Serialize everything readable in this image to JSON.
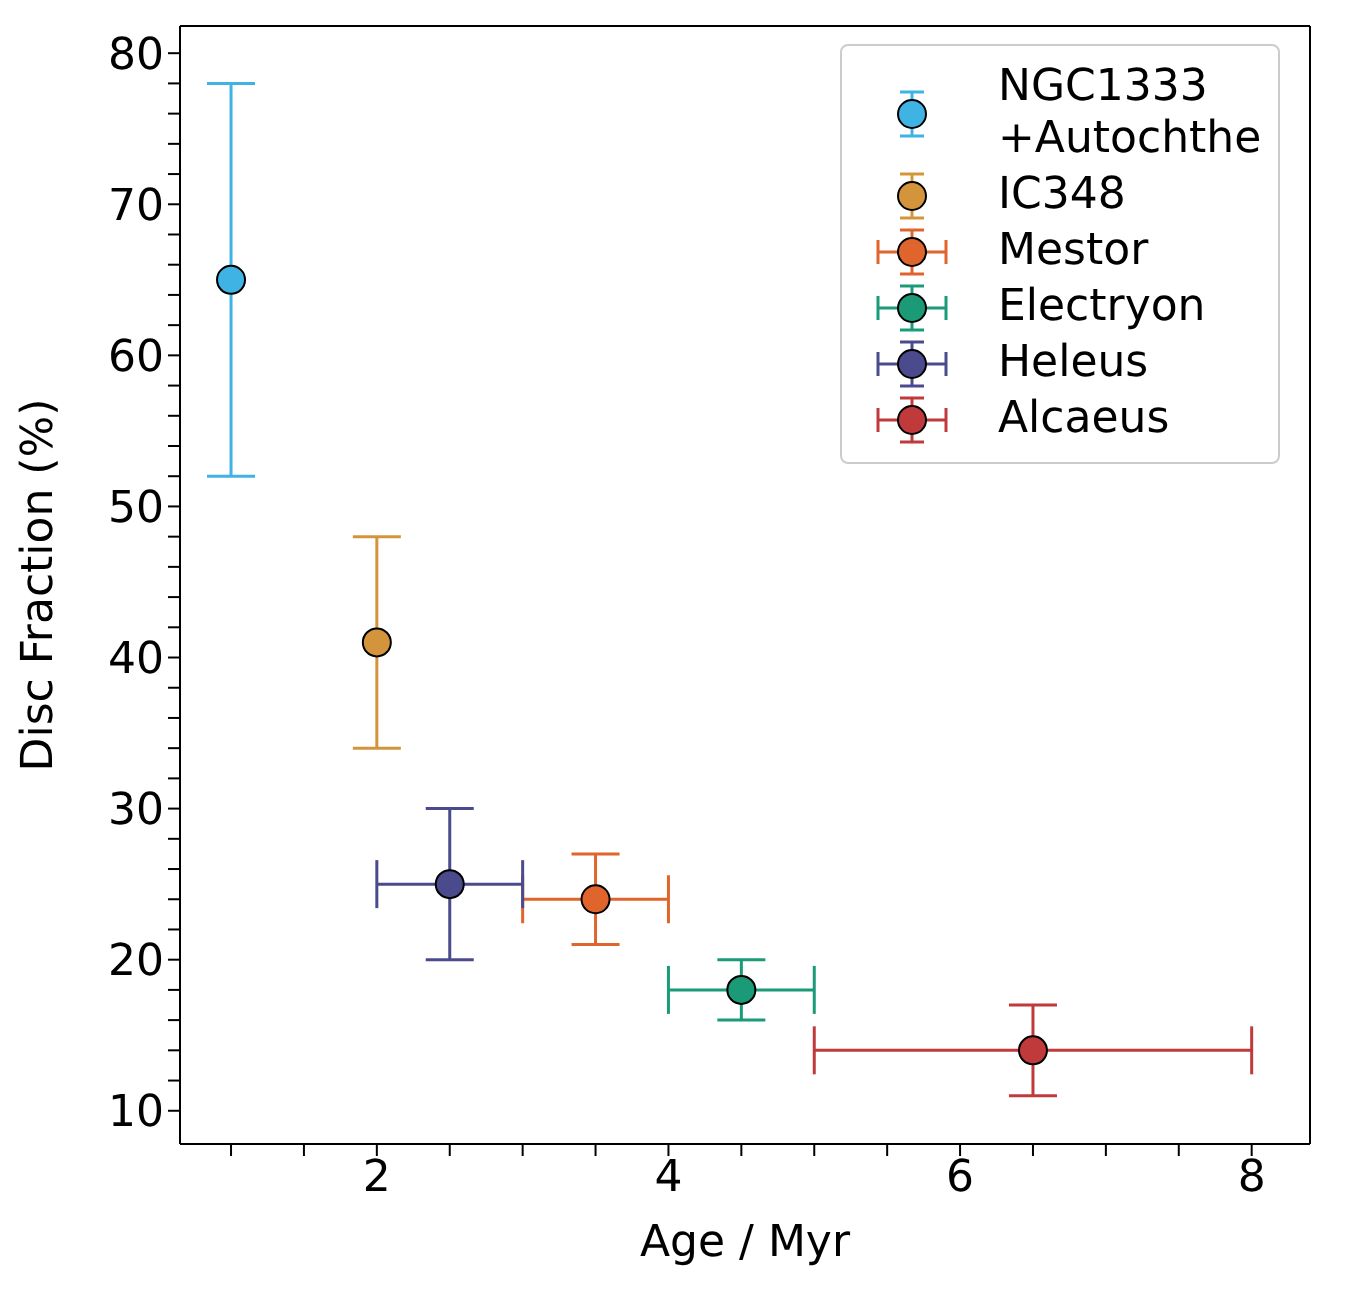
{
  "chart_data": {
    "type": "scatter",
    "xlabel": "Age / Myr",
    "ylabel": "Disc Fraction (%)",
    "xlim": [
      0.65,
      8.4
    ],
    "ylim": [
      7.8,
      81.8
    ],
    "xticks": [
      {
        "value": 1,
        "label": null
      },
      {
        "value": 1.5,
        "label": null
      },
      2,
      {
        "value": 2.5,
        "label": null
      },
      {
        "value": 3,
        "label": null
      },
      {
        "value": 3.5,
        "label": null
      },
      4,
      {
        "value": 4.5,
        "label": null
      },
      {
        "value": 5,
        "label": null
      },
      {
        "value": 5.5,
        "label": null
      },
      6,
      {
        "value": 6.5,
        "label": null
      },
      {
        "value": 7,
        "label": null
      },
      {
        "value": 7.5,
        "label": null
      },
      8
    ],
    "yticks": [
      10,
      {
        "value": 12,
        "label": null
      },
      {
        "value": 14,
        "label": null
      },
      {
        "value": 16,
        "label": null
      },
      {
        "value": 18,
        "label": null
      },
      20,
      {
        "value": 22,
        "label": null
      },
      {
        "value": 24,
        "label": null
      },
      {
        "value": 26,
        "label": null
      },
      {
        "value": 28,
        "label": null
      },
      30,
      {
        "value": 32,
        "label": null
      },
      {
        "value": 34,
        "label": null
      },
      {
        "value": 36,
        "label": null
      },
      {
        "value": 38,
        "label": null
      },
      40,
      {
        "value": 42,
        "label": null
      },
      {
        "value": 44,
        "label": null
      },
      {
        "value": 46,
        "label": null
      },
      {
        "value": 48,
        "label": null
      },
      50,
      {
        "value": 52,
        "label": null
      },
      {
        "value": 54,
        "label": null
      },
      {
        "value": 56,
        "label": null
      },
      {
        "value": 58,
        "label": null
      },
      60,
      {
        "value": 62,
        "label": null
      },
      {
        "value": 64,
        "label": null
      },
      {
        "value": 66,
        "label": null
      },
      {
        "value": 68,
        "label": null
      },
      70,
      {
        "value": 72,
        "label": null
      },
      {
        "value": 74,
        "label": null
      },
      {
        "value": 76,
        "label": null
      },
      {
        "value": 78,
        "label": null
      },
      80
    ],
    "marker": "circle",
    "legend": "top right",
    "series": [
      {
        "name": "NGC1333 +Autochthe",
        "color": "#3fb3e3",
        "x": [
          1
        ],
        "values": [
          65
        ],
        "errors": [
          13
        ]
      },
      {
        "name": "IC348",
        "color": "#d4943c",
        "x": [
          2
        ],
        "values": [
          41
        ],
        "errors": [
          7
        ]
      },
      {
        "name": "Mestor",
        "color": "#e0652c",
        "x": [
          3.5
        ],
        "values": [
          24
        ],
        "errors": [
          3
        ],
        "xerrors": [
          0.5
        ]
      },
      {
        "name": "Electryon",
        "color": "#1b9a78",
        "x": [
          4.5
        ],
        "values": [
          18
        ],
        "errors": [
          2
        ],
        "xerrors": [
          0.5
        ]
      },
      {
        "name": "Heleus",
        "color": "#4a4a8c",
        "x": [
          2.5
        ],
        "values": [
          25
        ],
        "errors": [
          5
        ],
        "xerrors": [
          0.5
        ]
      },
      {
        "name": "Alcaeus",
        "color": "#c0393b",
        "x": [
          6.5
        ],
        "values": [
          14
        ],
        "errors": [
          3
        ],
        "xerrors": [
          1.5
        ]
      }
    ]
  }
}
